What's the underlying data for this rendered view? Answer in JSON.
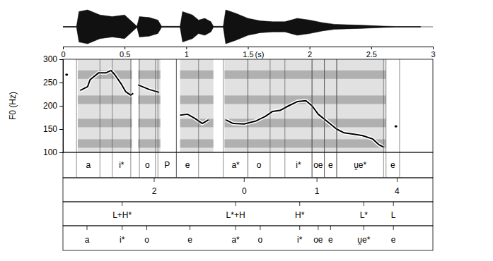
{
  "chart_data": {
    "type": "line",
    "y_label": "F0 (Hz)",
    "x_label": "(s)",
    "xlim": [
      0,
      3
    ],
    "xticks": [
      0,
      0.5,
      1,
      1.5,
      2,
      2.5,
      3
    ],
    "ylim": [
      100,
      300
    ],
    "yticks": [
      100,
      150,
      200,
      250,
      300
    ],
    "x": [
      0.03,
      0.08,
      0.14,
      0.2,
      0.22,
      0.29,
      0.35,
      0.39,
      0.42,
      0.47,
      0.51,
      0.55,
      0.57,
      0.59,
      0.61,
      0.7,
      0.78,
      0.86,
      0.95,
      1.01,
      1.07,
      1.13,
      1.18,
      1.25,
      1.32,
      1.38,
      1.47,
      1.56,
      1.64,
      1.7,
      1.76,
      1.83,
      1.9,
      1.97,
      2.02,
      2.07,
      2.14,
      2.22,
      2.28,
      2.36,
      2.43,
      2.51,
      2.56,
      2.6,
      2.65,
      2.7
    ],
    "series": [
      {
        "color": "#000000",
        "values": [
          267,
          null,
          233,
          241,
          256,
          271,
          271,
          276,
          267,
          248,
          230,
          223,
          227,
          null,
          245,
          235,
          229,
          null,
          180,
          182,
          173,
          162,
          170,
          null,
          170,
          162,
          161,
          167,
          177,
          188,
          190,
          200,
          209,
          211,
          200,
          182,
          167,
          150,
          142,
          139,
          136,
          129,
          117,
          111,
          null,
          156
        ]
      }
    ],
    "waveform": {
      "x": [
        0,
        0.11,
        0.13,
        0.2,
        0.3,
        0.4,
        0.5,
        0.56,
        0.6,
        0.62,
        0.7,
        0.77,
        0.8,
        0.95,
        0.97,
        1.05,
        1.1,
        1.15,
        1.2,
        1.22,
        1.3,
        1.32,
        1.4,
        1.5,
        1.6,
        1.7,
        1.8,
        1.9,
        2.0,
        2.1,
        2.2,
        2.3,
        2.4,
        2.5,
        2.6,
        2.7,
        2.9
      ],
      "amplitude": [
        0.02,
        0.02,
        0.9,
        1.0,
        0.7,
        0.6,
        0.7,
        0.3,
        0.03,
        0.6,
        0.55,
        0.4,
        0.03,
        0.03,
        0.9,
        0.7,
        0.4,
        0.5,
        0.3,
        0.03,
        0.03,
        1.0,
        0.8,
        0.5,
        0.35,
        0.3,
        0.3,
        0.5,
        0.4,
        0.25,
        0.15,
        0.12,
        0.1,
        0.07,
        0.04,
        0.02,
        0.02
      ]
    },
    "voicing": [
      {
        "start": 0.12,
        "end": 0.56
      },
      {
        "start": 0.61,
        "end": 0.79
      },
      {
        "start": 0.95,
        "end": 1.22
      },
      {
        "start": 1.31,
        "end": 2.62
      }
    ],
    "segments": [
      {
        "start": 0.11,
        "end": 0.3,
        "label": "a"
      },
      {
        "start": 0.4,
        "end": 0.55,
        "label": "i*"
      },
      {
        "start": 0.62,
        "end": 0.75,
        "label": "o"
      },
      {
        "start": 0.77,
        "end": 0.92,
        "label": "P"
      },
      {
        "start": 0.92,
        "end": 1.1,
        "label": "e"
      },
      {
        "start": 1.3,
        "end": 1.5,
        "label": "a*"
      },
      {
        "start": 1.5,
        "end": 1.68,
        "label": "o"
      },
      {
        "start": 1.8,
        "end": 2.02,
        "label": "i*"
      },
      {
        "start": 2.02,
        "end": 2.12,
        "label": "oe"
      },
      {
        "start": 2.12,
        "end": 2.22,
        "label": "e"
      },
      {
        "start": 2.22,
        "end": 2.6,
        "label": "u̯e*"
      },
      {
        "start": 2.62,
        "end": 2.73,
        "label": "e"
      }
    ],
    "break_indices": [
      {
        "time": 0.74,
        "value": 2
      },
      {
        "time": 1.47,
        "value": 0
      },
      {
        "time": 2.06,
        "value": 1
      },
      {
        "time": 2.71,
        "value": 4
      }
    ],
    "tones": [
      {
        "time": 0.48,
        "label": "L+H*"
      },
      {
        "time": 1.4,
        "label": "L*+H"
      },
      {
        "time": 1.92,
        "label": "H*"
      },
      {
        "time": 2.44,
        "label": "L*"
      },
      {
        "time": 2.68,
        "label": "L"
      }
    ],
    "syllables": [
      {
        "time": 0.195,
        "label": "a"
      },
      {
        "time": 0.48,
        "label": "i*"
      },
      {
        "time": 0.68,
        "label": "o"
      },
      {
        "time": 1.03,
        "label": "e"
      },
      {
        "time": 1.4,
        "label": "a*"
      },
      {
        "time": 1.6,
        "label": "o"
      },
      {
        "time": 1.92,
        "label": "i*"
      },
      {
        "time": 2.07,
        "label": "oe"
      },
      {
        "time": 2.17,
        "label": "e"
      },
      {
        "time": 2.44,
        "label": "u̯e*"
      },
      {
        "time": 2.68,
        "label": "e"
      }
    ]
  }
}
